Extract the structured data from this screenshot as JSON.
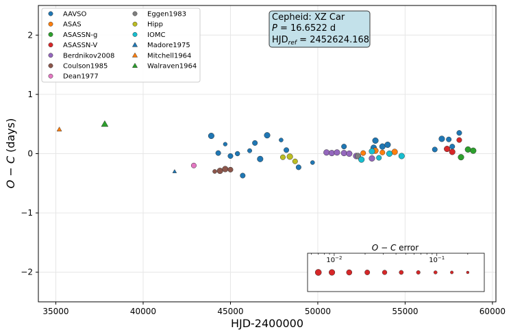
{
  "chart_data": {
    "type": "scatter",
    "xlabel": "HJD-2400000",
    "ylabel": "O − C (days)",
    "xlim": [
      34000,
      60200
    ],
    "ylim": [
      -2.5,
      2.5
    ],
    "xticks": [
      35000,
      40000,
      45000,
      50000,
      55000,
      60000
    ],
    "yticks": [
      -2,
      -1,
      0,
      1,
      2
    ],
    "grid": true,
    "legend_position": "top-left",
    "annotation": {
      "line1": "Cepheid: XZ Car",
      "line2_var": "P",
      "line2_val": " = 16.6522 d",
      "line3_var": "HJD",
      "line3_sub": "ref",
      "line3_val": " = 2452624.168"
    },
    "error_legend": {
      "title": "O − C error",
      "tick_labels": [
        {
          "base": "10",
          "exp": "−2",
          "value": 0.01
        },
        {
          "base": "10",
          "exp": "−1",
          "value": 0.1
        }
      ],
      "samples": [
        0.007,
        0.0095,
        0.014,
        0.021,
        0.031,
        0.045,
        0.066,
        0.097,
        0.14,
        0.2
      ]
    },
    "series": [
      {
        "name": "AAVSO",
        "marker": "circle",
        "color": "#1f77b4",
        "points": [
          {
            "x": 43900,
            "y": 0.3,
            "err": 0.01
          },
          {
            "x": 44300,
            "y": 0.01,
            "err": 0.02
          },
          {
            "x": 44700,
            "y": 0.16,
            "err": 0.06
          },
          {
            "x": 45000,
            "y": -0.04,
            "err": 0.02
          },
          {
            "x": 45400,
            "y": 0.0,
            "err": 0.03
          },
          {
            "x": 45700,
            "y": -0.37,
            "err": 0.02
          },
          {
            "x": 46100,
            "y": 0.05,
            "err": 0.04
          },
          {
            "x": 46400,
            "y": 0.18,
            "err": 0.02
          },
          {
            "x": 46700,
            "y": -0.09,
            "err": 0.01
          },
          {
            "x": 47100,
            "y": 0.31,
            "err": 0.01
          },
          {
            "x": 47900,
            "y": 0.23,
            "err": 0.05
          },
          {
            "x": 48200,
            "y": 0.06,
            "err": 0.02
          },
          {
            "x": 48900,
            "y": -0.23,
            "err": 0.02
          },
          {
            "x": 49700,
            "y": -0.15,
            "err": 0.05
          },
          {
            "x": 51500,
            "y": 0.12,
            "err": 0.02
          },
          {
            "x": 53200,
            "y": 0.1,
            "err": 0.01
          },
          {
            "x": 53300,
            "y": 0.22,
            "err": 0.01
          },
          {
            "x": 53700,
            "y": 0.12,
            "err": 0.01
          },
          {
            "x": 54000,
            "y": 0.15,
            "err": 0.01
          },
          {
            "x": 56700,
            "y": 0.07,
            "err": 0.02
          },
          {
            "x": 57100,
            "y": 0.25,
            "err": 0.01
          },
          {
            "x": 57500,
            "y": 0.24,
            "err": 0.02
          },
          {
            "x": 57700,
            "y": 0.12,
            "err": 0.02
          },
          {
            "x": 58100,
            "y": 0.35,
            "err": 0.02
          }
        ]
      },
      {
        "name": "ASAS",
        "marker": "circle",
        "color": "#ff7f0e",
        "points": [
          {
            "x": 52600,
            "y": 0.01,
            "err": 0.02
          },
          {
            "x": 53300,
            "y": 0.05,
            "err": 0.01
          },
          {
            "x": 53700,
            "y": 0.02,
            "err": 0.02
          },
          {
            "x": 54400,
            "y": 0.03,
            "err": 0.01
          }
        ]
      },
      {
        "name": "ASASSN-g",
        "marker": "circle",
        "color": "#2ca02c",
        "points": [
          {
            "x": 58200,
            "y": -0.06,
            "err": 0.01
          },
          {
            "x": 58600,
            "y": 0.07,
            "err": 0.01
          },
          {
            "x": 58900,
            "y": 0.05,
            "err": 0.01
          }
        ]
      },
      {
        "name": "ASASSN-V",
        "marker": "circle",
        "color": "#d62728",
        "points": [
          {
            "x": 57400,
            "y": 0.08,
            "err": 0.01
          },
          {
            "x": 57700,
            "y": 0.03,
            "err": 0.01
          },
          {
            "x": 58100,
            "y": 0.23,
            "err": 0.02
          }
        ]
      },
      {
        "name": "Berdnikov2008",
        "marker": "circle",
        "color": "#9467bd",
        "points": [
          {
            "x": 50500,
            "y": 0.02,
            "err": 0.01
          },
          {
            "x": 50800,
            "y": 0.01,
            "err": 0.01
          },
          {
            "x": 51100,
            "y": 0.02,
            "err": 0.01
          },
          {
            "x": 51500,
            "y": 0.01,
            "err": 0.01
          },
          {
            "x": 51800,
            "y": 0.0,
            "err": 0.01
          },
          {
            "x": 52200,
            "y": -0.04,
            "err": 0.01
          },
          {
            "x": 53100,
            "y": -0.08,
            "err": 0.01
          }
        ]
      },
      {
        "name": "Coulson1985",
        "marker": "circle",
        "color": "#8c564b",
        "points": [
          {
            "x": 44100,
            "y": -0.3,
            "err": 0.05
          },
          {
            "x": 44400,
            "y": -0.29,
            "err": 0.01
          },
          {
            "x": 44700,
            "y": -0.26,
            "err": 0.01
          },
          {
            "x": 45000,
            "y": -0.27,
            "err": 0.02
          }
        ]
      },
      {
        "name": "Dean1977",
        "marker": "circle",
        "color": "#e377c2",
        "points": [
          {
            "x": 42900,
            "y": -0.2,
            "err": 0.02
          }
        ]
      },
      {
        "name": "Eggen1983",
        "marker": "circle",
        "color": "#7f7f7f",
        "points": [
          {
            "x": 52300,
            "y": -0.04,
            "err": 0.01
          }
        ]
      },
      {
        "name": "Hipp",
        "marker": "circle",
        "color": "#bcbd22",
        "points": [
          {
            "x": 48000,
            "y": -0.06,
            "err": 0.02
          },
          {
            "x": 48400,
            "y": -0.05,
            "err": 0.01
          },
          {
            "x": 48700,
            "y": -0.13,
            "err": 0.02
          }
        ]
      },
      {
        "name": "IOMC",
        "marker": "circle",
        "color": "#17becf",
        "points": [
          {
            "x": 52500,
            "y": -0.1,
            "err": 0.01
          },
          {
            "x": 53100,
            "y": 0.04,
            "err": 0.01
          },
          {
            "x": 53500,
            "y": -0.07,
            "err": 0.02
          },
          {
            "x": 54100,
            "y": 0.0,
            "err": 0.01
          },
          {
            "x": 54800,
            "y": -0.04,
            "err": 0.01
          }
        ]
      },
      {
        "name": "Madore1975",
        "marker": "triangle",
        "color": "#1f77b4",
        "points": [
          {
            "x": 41800,
            "y": -0.3,
            "err": 0.1
          }
        ]
      },
      {
        "name": "Mitchell1964",
        "marker": "triangle",
        "color": "#ff7f0e",
        "points": [
          {
            "x": 35200,
            "y": 0.41,
            "err": 0.05
          }
        ]
      },
      {
        "name": "Walraven1964",
        "marker": "triangle",
        "color": "#2ca02c",
        "points": [
          {
            "x": 37800,
            "y": 0.5,
            "err": 0.01
          }
        ]
      }
    ]
  }
}
